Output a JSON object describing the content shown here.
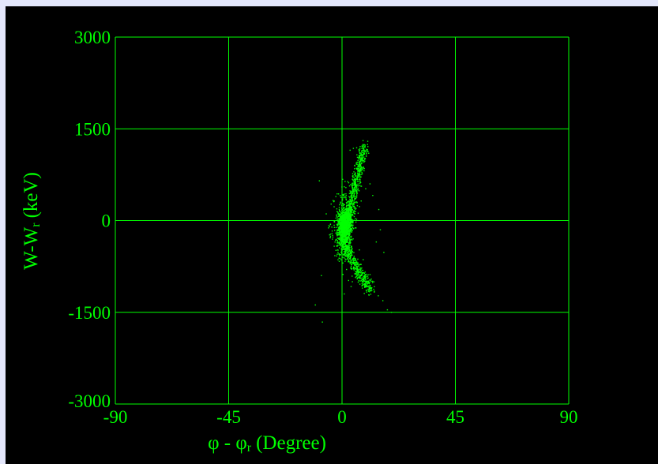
{
  "chart_data": {
    "type": "scatter",
    "title": "",
    "xlabel": {
      "main": "φ - φ",
      "sub": "r",
      "unit": "(Degree)"
    },
    "ylabel": {
      "main": "W-W",
      "sub": "r",
      "unit": "(keV)"
    },
    "xlim": [
      -90,
      90
    ],
    "ylim": [
      -3000,
      3000
    ],
    "x_ticks": [
      -90,
      -45,
      0,
      45,
      90
    ],
    "y_ticks": [
      -3000,
      -1500,
      0,
      1500,
      3000
    ],
    "x_tick_labels": [
      "-90",
      "-45",
      "0",
      "45",
      "90"
    ],
    "y_tick_labels": [
      "-3000",
      "-1500",
      "0",
      "1500",
      "3000"
    ],
    "grid": true,
    "colors": {
      "background": "#000000",
      "foreground": "#00ff00",
      "page": "#e4e7fb"
    },
    "series": [
      {
        "color": "#00ff00",
        "points": [
          [
            3.2,
            1150
          ],
          [
            4.5,
            1180
          ],
          [
            5.8,
            1190
          ],
          [
            7.2,
            1210
          ],
          [
            8.6,
            1180
          ],
          [
            9.8,
            1150
          ],
          [
            10.6,
            1100
          ],
          [
            9.6,
            1050
          ],
          [
            8.6,
            980
          ],
          [
            7.6,
            880
          ],
          [
            6.8,
            780
          ],
          [
            6.1,
            680
          ],
          [
            5.4,
            580
          ],
          [
            4.8,
            480
          ],
          [
            4.2,
            380
          ],
          [
            3.7,
            280
          ],
          [
            3.2,
            180
          ],
          [
            2.7,
            90
          ],
          [
            2.2,
            20
          ],
          [
            1.5,
            -30
          ],
          [
            0.8,
            -80
          ],
          [
            0.3,
            -160
          ],
          [
            0.4,
            -260
          ],
          [
            0.9,
            -360
          ],
          [
            1.6,
            -460
          ],
          [
            2.4,
            -560
          ],
          [
            3.4,
            -660
          ],
          [
            4.6,
            -760
          ],
          [
            5.8,
            -850
          ],
          [
            7.0,
            -930
          ],
          [
            8.2,
            -990
          ],
          [
            9.2,
            -1030
          ],
          [
            10.4,
            -1070
          ],
          [
            11.4,
            -1110
          ],
          [
            12.8,
            -1170
          ],
          [
            14.4,
            -1230
          ],
          [
            16.2,
            -1310
          ],
          [
            18.0,
            -1460
          ],
          [
            -1.2,
            -160
          ],
          [
            -2.1,
            -220
          ],
          [
            -2.6,
            -320
          ],
          [
            -3.1,
            -420
          ],
          [
            -1.6,
            -520
          ],
          [
            -0.8,
            -620
          ],
          [
            -4.6,
            -280
          ],
          [
            -5.4,
            -120
          ],
          [
            -8.2,
            -900
          ],
          [
            -10.6,
            -1380
          ],
          [
            -7.8,
            -1660
          ],
          [
            -9.0,
            650
          ],
          [
            1.8,
            -800
          ],
          [
            0.4,
            -880
          ],
          [
            2.6,
            -980
          ],
          [
            3.6,
            -1080
          ],
          [
            5.6,
            -920
          ],
          [
            4.1,
            -1000
          ],
          [
            12.2,
            410
          ],
          [
            14.6,
            180
          ],
          [
            15.2,
            -150
          ],
          [
            13.6,
            -350
          ],
          [
            16.6,
            -520
          ],
          [
            11.1,
            600
          ],
          [
            9.4,
            520
          ],
          [
            -0.6,
            300
          ],
          [
            0.2,
            420
          ],
          [
            -1.1,
            180
          ],
          [
            1.2,
            640
          ],
          [
            -2.4,
            40
          ],
          [
            0.9,
            -1200
          ],
          [
            19.6,
            -1500
          ],
          [
            7.6,
            320
          ],
          [
            6.4,
            120
          ],
          [
            5.2,
            -120
          ],
          [
            4.4,
            -300
          ],
          [
            6.9,
            -480
          ],
          [
            8.4,
            -640
          ]
        ],
        "clusters": [
          {
            "center": [
              1.2,
              -60
            ],
            "spread": [
              1.3,
              110
            ],
            "count": 850
          },
          {
            "center": [
              0.6,
              -280
            ],
            "spread": [
              1.6,
              160
            ],
            "count": 260
          },
          {
            "center": [
              -0.5,
              -130
            ],
            "spread": [
              2.2,
              240
            ],
            "count": 140
          },
          {
            "center": [
              3.0,
              180
            ],
            "spread": [
              2.0,
              220
            ],
            "count": 120
          }
        ],
        "arms": [
          {
            "from": [
              2.2,
              0
            ],
            "to": [
              8.8,
              1200
            ],
            "count": 520,
            "jitter": [
              0.9,
              70
            ]
          },
          {
            "from": [
              0.5,
              -200
            ],
            "to": [
              11.5,
              -1120
            ],
            "count": 540,
            "jitter": [
              0.9,
              70
            ],
            "curve": 0.6
          }
        ]
      }
    ]
  }
}
